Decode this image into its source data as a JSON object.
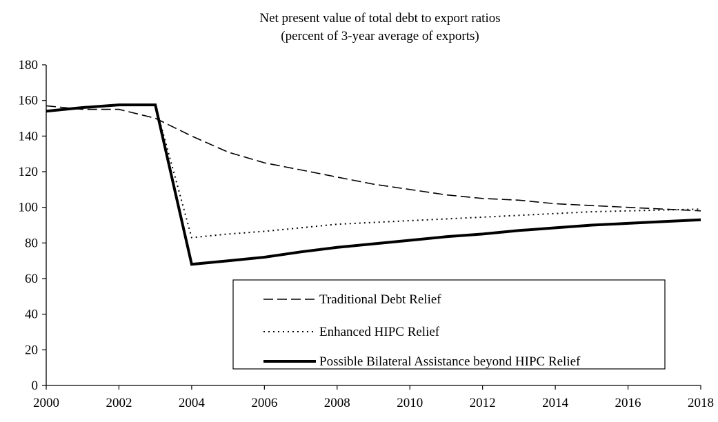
{
  "chart_data": {
    "type": "line",
    "title": "Net present value of total debt to export ratios",
    "subtitle": "(percent of 3-year average of exports)",
    "xlabel": "",
    "ylabel": "",
    "xlim": [
      2000,
      2018
    ],
    "ylim": [
      0,
      180
    ],
    "x_ticks": [
      "2000",
      "2002",
      "2004",
      "2006",
      "2008",
      "2010",
      "2012",
      "2014",
      "2016",
      "2018"
    ],
    "y_ticks": [
      "0",
      "20",
      "40",
      "60",
      "80",
      "100",
      "120",
      "140",
      "160",
      "180"
    ],
    "grid": false,
    "legend_position": "bottom-right inside plot",
    "series": [
      {
        "name": "Traditional Debt Relief",
        "style": "dashed",
        "points": [
          [
            2000,
            157
          ],
          [
            2001,
            155
          ],
          [
            2002,
            155
          ],
          [
            2003,
            150
          ],
          [
            2004,
            140
          ],
          [
            2005,
            131
          ],
          [
            2006,
            125
          ],
          [
            2007,
            121
          ],
          [
            2008,
            117
          ],
          [
            2009,
            113
          ],
          [
            2010,
            110
          ],
          [
            2011,
            107
          ],
          [
            2012,
            105
          ],
          [
            2013,
            104
          ],
          [
            2014,
            102
          ],
          [
            2015,
            101
          ],
          [
            2016,
            100
          ],
          [
            2017,
            99
          ],
          [
            2018,
            98
          ]
        ]
      },
      {
        "name": "Enhanced HIPC Relief",
        "style": "dotted",
        "points": [
          [
            2000,
            154
          ],
          [
            2001,
            156
          ],
          [
            2002,
            157.5
          ],
          [
            2003,
            157.5
          ],
          [
            2004,
            83
          ],
          [
            2005,
            85
          ],
          [
            2006,
            86.5
          ],
          [
            2007,
            88.5
          ],
          [
            2008,
            90.5
          ],
          [
            2009,
            91.5
          ],
          [
            2010,
            92.5
          ],
          [
            2011,
            93.5
          ],
          [
            2012,
            94.5
          ],
          [
            2013,
            95.5
          ],
          [
            2014,
            96.5
          ],
          [
            2015,
            97.5
          ],
          [
            2016,
            98
          ],
          [
            2017,
            98.5
          ],
          [
            2018,
            99
          ]
        ]
      },
      {
        "name": "Possible Bilateral Assistance beyond HIPC Relief",
        "style": "solid-thick",
        "points": [
          [
            2000,
            154
          ],
          [
            2001,
            156
          ],
          [
            2002,
            157.5
          ],
          [
            2003,
            157.5
          ],
          [
            2004,
            68
          ],
          [
            2005,
            70
          ],
          [
            2006,
            72
          ],
          [
            2007,
            75
          ],
          [
            2008,
            77.5
          ],
          [
            2009,
            79.5
          ],
          [
            2010,
            81.5
          ],
          [
            2011,
            83.5
          ],
          [
            2012,
            85
          ],
          [
            2013,
            87
          ],
          [
            2014,
            88.5
          ],
          [
            2015,
            90
          ],
          [
            2016,
            91
          ],
          [
            2017,
            92
          ],
          [
            2018,
            93
          ]
        ]
      }
    ]
  }
}
